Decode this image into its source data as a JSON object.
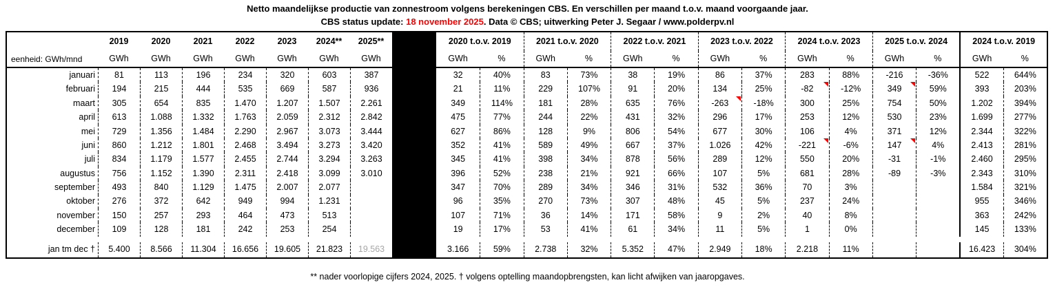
{
  "title_line1": "Netto maandelijkse productie van zonnestroom volgens berekeningen CBS. En verschillen per maand t.o.v. maand voorgaande jaar.",
  "title_line2_prefix": "CBS status update: ",
  "title_line2_date": "18 november 2025",
  "title_line2_suffix": ". Data © CBS; uitwerking Peter J. Segaar / www.polderpv.nl",
  "footer_note": "** nader voorlopige cijfers 2024, 2025.  † volgens optelling maandopbrengsten, kan licht afwijken van jaaropgaves.",
  "colors": {
    "accent_red": "#ff0000",
    "muted_total_gray": "#a6a6a6",
    "separator_black": "#000000"
  },
  "chart_data": {
    "type": "table",
    "unit_label": "eenheid: GWh/mnd",
    "unit_sub": "GWh",
    "year_columns": [
      "2019",
      "2020",
      "2021",
      "2022",
      "2023",
      "2024**",
      "2025**"
    ],
    "diff_groups": [
      "2020 t.o.v. 2019",
      "2021 t.o.v. 2020",
      "2022 t.o.v. 2021",
      "2023 t.o.v. 2022",
      "2024 t.o.v. 2023",
      "2025 t.o.v. 2024",
      "2024 t.o.v. 2019"
    ],
    "diff_sub": [
      "GWh",
      "%"
    ],
    "rows": [
      {
        "month": "januari",
        "years": [
          "81",
          "113",
          "196",
          "234",
          "320",
          "603",
          "387"
        ],
        "diffs": [
          [
            "32",
            "40%"
          ],
          [
            "83",
            "73%"
          ],
          [
            "38",
            "19%"
          ],
          [
            "86",
            "37%"
          ],
          [
            "283",
            "88%"
          ],
          [
            "-216",
            "-36%"
          ],
          [
            "522",
            "644%"
          ]
        ]
      },
      {
        "month": "februari",
        "years": [
          "194",
          "215",
          "444",
          "535",
          "669",
          "587",
          "936"
        ],
        "diffs": [
          [
            "21",
            "11%"
          ],
          [
            "229",
            "107%"
          ],
          [
            "91",
            "20%"
          ],
          [
            "134",
            "25%"
          ],
          [
            "-82",
            "-12%"
          ],
          [
            "349",
            "59%"
          ],
          [
            "393",
            "203%"
          ]
        ]
      },
      {
        "month": "maart",
        "years": [
          "305",
          "654",
          "835",
          "1.470",
          "1.207",
          "1.507",
          "2.261"
        ],
        "diffs": [
          [
            "349",
            "114%"
          ],
          [
            "181",
            "28%"
          ],
          [
            "635",
            "76%"
          ],
          [
            "-263",
            "-18%"
          ],
          [
            "300",
            "25%"
          ],
          [
            "754",
            "50%"
          ],
          [
            "1.202",
            "394%"
          ]
        ]
      },
      {
        "month": "april",
        "years": [
          "613",
          "1.088",
          "1.332",
          "1.763",
          "2.059",
          "2.312",
          "2.842"
        ],
        "diffs": [
          [
            "475",
            "77%"
          ],
          [
            "244",
            "22%"
          ],
          [
            "431",
            "32%"
          ],
          [
            "296",
            "17%"
          ],
          [
            "253",
            "12%"
          ],
          [
            "530",
            "23%"
          ],
          [
            "1.699",
            "277%"
          ]
        ]
      },
      {
        "month": "mei",
        "years": [
          "729",
          "1.356",
          "1.484",
          "2.290",
          "2.967",
          "3.073",
          "3.444"
        ],
        "diffs": [
          [
            "627",
            "86%"
          ],
          [
            "128",
            "9%"
          ],
          [
            "806",
            "54%"
          ],
          [
            "677",
            "30%"
          ],
          [
            "106",
            "4%"
          ],
          [
            "371",
            "12%"
          ],
          [
            "2.344",
            "322%"
          ]
        ]
      },
      {
        "month": "juni",
        "years": [
          "860",
          "1.212",
          "1.801",
          "2.468",
          "3.494",
          "3.273",
          "3.420"
        ],
        "diffs": [
          [
            "352",
            "41%"
          ],
          [
            "589",
            "49%"
          ],
          [
            "667",
            "37%"
          ],
          [
            "1.026",
            "42%"
          ],
          [
            "-221",
            "-6%"
          ],
          [
            "147",
            "4%"
          ],
          [
            "2.413",
            "281%"
          ]
        ]
      },
      {
        "month": "juli",
        "years": [
          "834",
          "1.179",
          "1.577",
          "2.455",
          "2.744",
          "3.294",
          "3.263"
        ],
        "diffs": [
          [
            "345",
            "41%"
          ],
          [
            "398",
            "34%"
          ],
          [
            "878",
            "56%"
          ],
          [
            "289",
            "12%"
          ],
          [
            "550",
            "20%"
          ],
          [
            "-31",
            "-1%"
          ],
          [
            "2.460",
            "295%"
          ]
        ]
      },
      {
        "month": "augustus",
        "years": [
          "756",
          "1.152",
          "1.390",
          "2.311",
          "2.418",
          "3.099",
          "3.010"
        ],
        "diffs": [
          [
            "396",
            "52%"
          ],
          [
            "238",
            "21%"
          ],
          [
            "921",
            "66%"
          ],
          [
            "107",
            "5%"
          ],
          [
            "681",
            "28%"
          ],
          [
            "-89",
            "-3%"
          ],
          [
            "2.343",
            "310%"
          ]
        ]
      },
      {
        "month": "september",
        "years": [
          "493",
          "840",
          "1.129",
          "1.475",
          "2.007",
          "2.077",
          ""
        ],
        "diffs": [
          [
            "347",
            "70%"
          ],
          [
            "289",
            "34%"
          ],
          [
            "346",
            "31%"
          ],
          [
            "532",
            "36%"
          ],
          [
            "70",
            "3%"
          ],
          [
            "",
            ""
          ],
          [
            "1.584",
            "321%"
          ]
        ]
      },
      {
        "month": "oktober",
        "years": [
          "276",
          "372",
          "642",
          "949",
          "994",
          "1.231",
          ""
        ],
        "diffs": [
          [
            "96",
            "35%"
          ],
          [
            "270",
            "73%"
          ],
          [
            "307",
            "48%"
          ],
          [
            "45",
            "5%"
          ],
          [
            "237",
            "24%"
          ],
          [
            "",
            ""
          ],
          [
            "955",
            "346%"
          ]
        ]
      },
      {
        "month": "november",
        "years": [
          "150",
          "257",
          "293",
          "464",
          "473",
          "513",
          ""
        ],
        "diffs": [
          [
            "107",
            "71%"
          ],
          [
            "36",
            "14%"
          ],
          [
            "171",
            "58%"
          ],
          [
            "9",
            "2%"
          ],
          [
            "40",
            "8%"
          ],
          [
            "",
            ""
          ],
          [
            "363",
            "242%"
          ]
        ]
      },
      {
        "month": "december",
        "years": [
          "109",
          "128",
          "181",
          "242",
          "253",
          "254",
          ""
        ],
        "diffs": [
          [
            "19",
            "17%"
          ],
          [
            "53",
            "41%"
          ],
          [
            "61",
            "34%"
          ],
          [
            "11",
            "5%"
          ],
          [
            "1",
            "0%"
          ],
          [
            "",
            ""
          ],
          [
            "145",
            "133%"
          ]
        ]
      }
    ],
    "total_row": {
      "label": "jan tm dec †",
      "years": [
        "5.400",
        "8.566",
        "11.304",
        "16.656",
        "19.605",
        "21.823",
        "19.563"
      ],
      "muted_year_index": 6,
      "diffs": [
        [
          "3.166",
          "59%"
        ],
        [
          "2.738",
          "32%"
        ],
        [
          "5.352",
          "47%"
        ],
        [
          "2.949",
          "18%"
        ],
        [
          "2.218",
          "11%"
        ],
        [
          "",
          ""
        ],
        [
          "16.423",
          "304%"
        ]
      ]
    },
    "comment_markers": [
      {
        "row": 1,
        "group": 4
      },
      {
        "row": 1,
        "group": 5
      },
      {
        "row": 2,
        "group": 3
      },
      {
        "row": 5,
        "group": 4
      },
      {
        "row": 5,
        "group": 5
      }
    ]
  }
}
